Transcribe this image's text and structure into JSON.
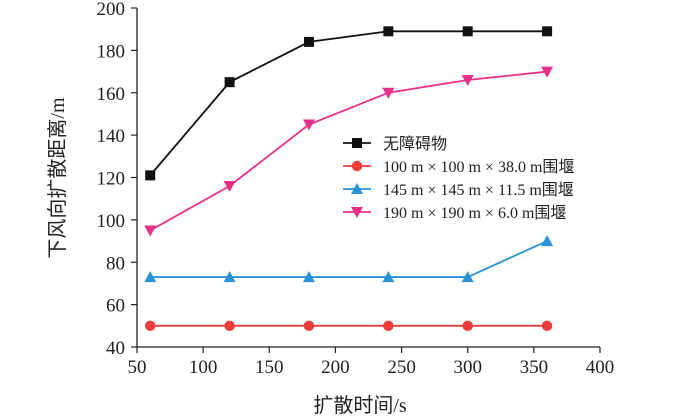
{
  "chart_data": {
    "type": "line",
    "title": "",
    "xlabel": "扩散时间/s",
    "ylabel": "下风向扩散距离/m",
    "xlim": [
      50,
      400
    ],
    "ylim": [
      40,
      200
    ],
    "xticks": [
      50,
      100,
      150,
      200,
      250,
      300,
      350,
      400
    ],
    "yticks": [
      40,
      60,
      80,
      100,
      120,
      140,
      160,
      180,
      200
    ],
    "grid": false,
    "legend_position": "center-right",
    "x": [
      60,
      120,
      180,
      240,
      300,
      360
    ],
    "series": [
      {
        "name": "无障碍物",
        "values": [
          121,
          165,
          184,
          189,
          189,
          189
        ],
        "color": "#111111",
        "marker": "square"
      },
      {
        "name": "100 m × 100 m × 38.0 m围堰",
        "values": [
          50,
          50,
          50,
          50,
          50,
          50
        ],
        "color": "#ee3b3b",
        "marker": "circle"
      },
      {
        "name": "145 m × 145 m × 11.5 m围堰",
        "values": [
          73,
          73,
          73,
          73,
          73,
          90
        ],
        "color": "#2a93d5",
        "marker": "triangle-up"
      },
      {
        "name": "190 m × 190 m × 6.0 m围堰",
        "values": [
          95,
          116,
          145,
          160,
          166,
          170
        ],
        "color": "#e8308a",
        "marker": "triangle-down"
      }
    ]
  }
}
